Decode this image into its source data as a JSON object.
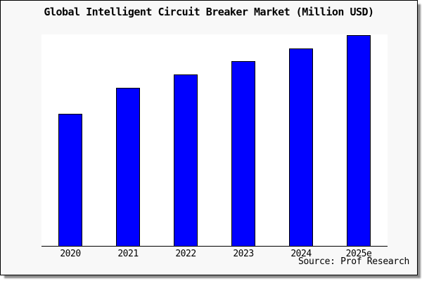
{
  "chart_data": {
    "type": "bar",
    "title": "Global Intelligent Circuit Breaker Market (Million USD)",
    "categories": [
      "2020",
      "2021",
      "2022",
      "2023",
      "2024",
      "2025e"
    ],
    "values": [
      100,
      120,
      130,
      140,
      150,
      160
    ],
    "value_units": "relative index (2020 = 100); estimated from bar heights, no y-axis labels shown",
    "xlabel": "",
    "ylabel": "",
    "ylim": [
      0,
      160.5
    ],
    "grid": false,
    "legend": false,
    "bar_color": "#0000ff",
    "bar_border_color": "#000000",
    "plot_background": "#ffffff",
    "panel_background": "#f8f8f8",
    "axis_color": "#000000",
    "source_note": "Source: Prof Research"
  }
}
